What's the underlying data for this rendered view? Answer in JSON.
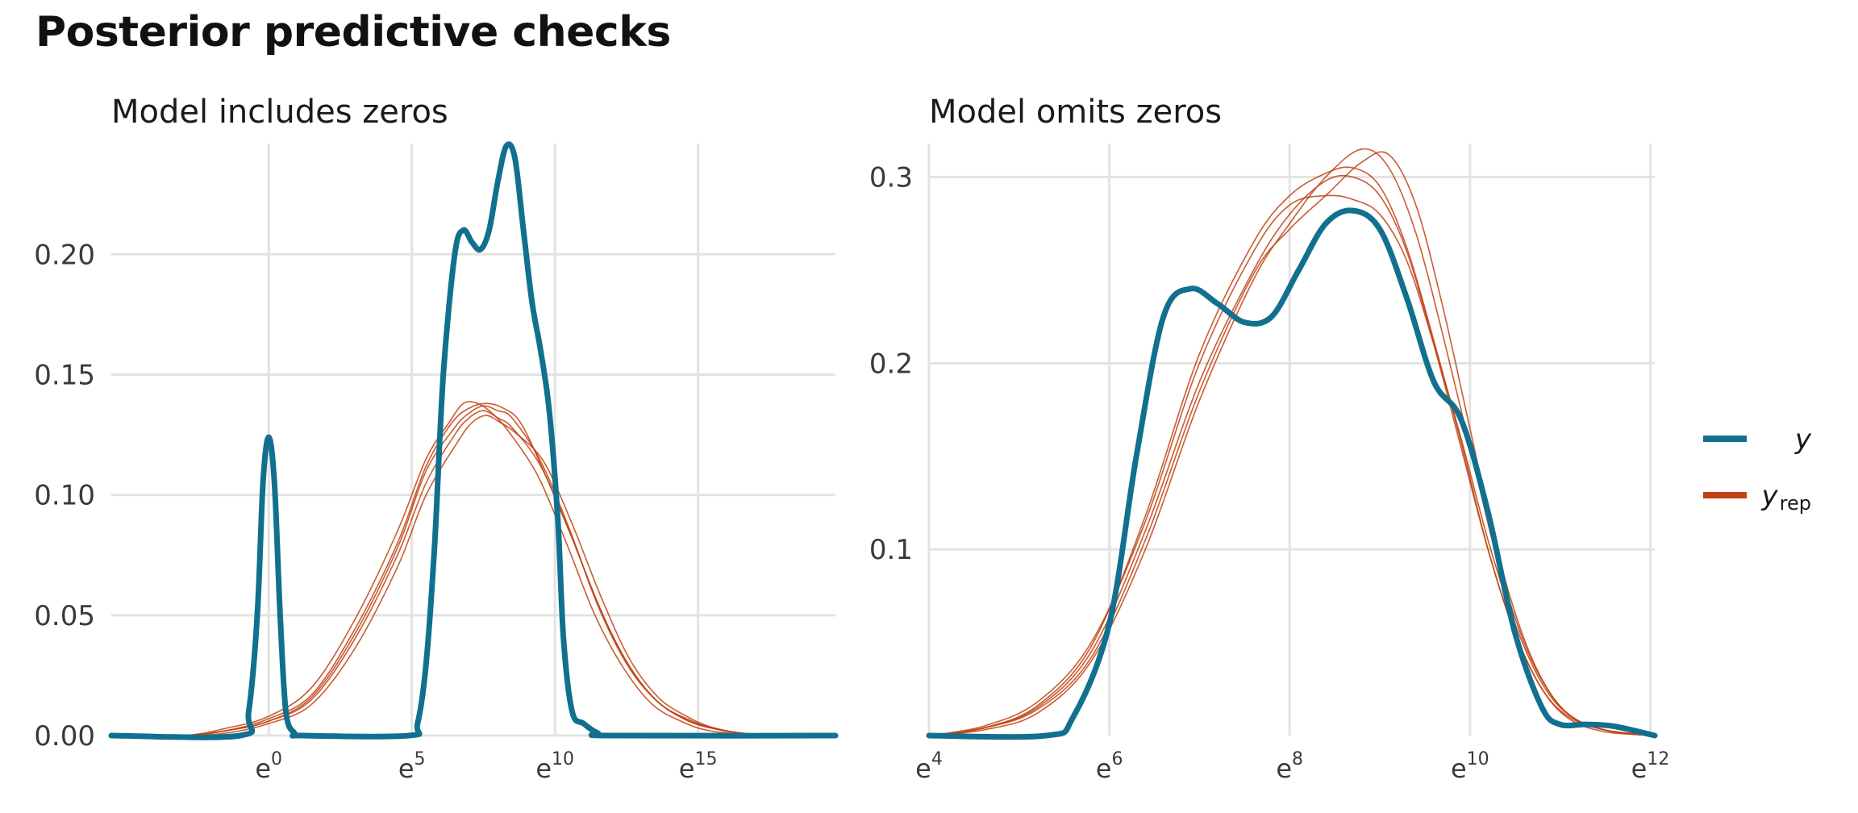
{
  "title": "Posterior predictive checks",
  "legend": {
    "items": [
      {
        "key": "y",
        "label": "y",
        "subscript": "",
        "color": "#12708f"
      },
      {
        "key": "yrep",
        "label": "y",
        "subscript": "rep",
        "color": "#c0400f"
      }
    ]
  },
  "colors": {
    "y": "#12708f",
    "yrep": "#c0400f",
    "grid": "#e3e3e3"
  },
  "chart_data": [
    {
      "type": "line",
      "title": "Model includes zeros",
      "xlabel": "",
      "ylabel": "",
      "x_scale": "log",
      "xlim": [
        -5.5,
        19.8
      ],
      "ylim": [
        0,
        0.246
      ],
      "x_ticks": [
        {
          "base": "e",
          "exp": "0",
          "x": 0
        },
        {
          "base": "e",
          "exp": "5",
          "x": 5
        },
        {
          "base": "e",
          "exp": "10",
          "x": 10
        },
        {
          "base": "e",
          "exp": "15",
          "x": 15
        }
      ],
      "y_ticks": [
        {
          "label": "0.00",
          "y": 0
        },
        {
          "label": "0.05",
          "y": 0.05
        },
        {
          "label": "0.10",
          "y": 0.1
        },
        {
          "label": "0.15",
          "y": 0.15
        },
        {
          "label": "0.20",
          "y": 0.2
        }
      ],
      "grid": true,
      "series": [
        {
          "name": "y",
          "key": "y",
          "x": [
            -5.5,
            -1.0,
            -0.7,
            -0.4,
            -0.2,
            0.0,
            0.2,
            0.4,
            0.6,
            0.9,
            1.2,
            4.9,
            5.2,
            5.5,
            5.8,
            6.1,
            6.5,
            6.8,
            7.1,
            7.4,
            7.7,
            8.0,
            8.3,
            8.6,
            8.9,
            9.2,
            9.5,
            9.8,
            10.1,
            10.3,
            10.6,
            11.0,
            11.5,
            12.0,
            19.8
          ],
          "y": [
            0,
            0,
            0.01,
            0.05,
            0.105,
            0.124,
            0.105,
            0.05,
            0.01,
            0.001,
            0,
            0,
            0.005,
            0.03,
            0.08,
            0.15,
            0.2,
            0.21,
            0.205,
            0.202,
            0.21,
            0.23,
            0.245,
            0.24,
            0.21,
            0.18,
            0.16,
            0.135,
            0.09,
            0.04,
            0.01,
            0.005,
            0.001,
            0,
            0
          ]
        },
        {
          "name": "",
          "key": "yrep",
          "x": [
            -5.5,
            -3.0,
            -1.5,
            0,
            1.5,
            3,
            4.5,
            5.5,
            6.5,
            7.0,
            7.5,
            8.0,
            8.5,
            9.5,
            10.5,
            11.5,
            12.5,
            13.5,
            14.5,
            15.5,
            17,
            19.8
          ],
          "y": [
            0,
            0,
            0.002,
            0.006,
            0.015,
            0.04,
            0.075,
            0.105,
            0.125,
            0.132,
            0.135,
            0.132,
            0.128,
            0.112,
            0.085,
            0.055,
            0.03,
            0.015,
            0.007,
            0.003,
            0.0005,
            0
          ]
        },
        {
          "name": "",
          "key": "yrep",
          "x": [
            -5.5,
            -3.0,
            -1.5,
            0,
            1.5,
            3,
            4.5,
            5.5,
            6.3,
            6.8,
            7.3,
            7.8,
            8.4,
            9.4,
            10.4,
            11.4,
            12.4,
            13.4,
            14.4,
            15.4,
            17,
            19.8
          ],
          "y": [
            0,
            0,
            0.003,
            0.008,
            0.02,
            0.048,
            0.085,
            0.115,
            0.13,
            0.138,
            0.138,
            0.134,
            0.126,
            0.108,
            0.08,
            0.05,
            0.028,
            0.013,
            0.006,
            0.002,
            0.0004,
            0
          ]
        },
        {
          "name": "",
          "key": "yrep",
          "x": [
            -5.5,
            -3.0,
            -1.5,
            0,
            1.5,
            3,
            4.5,
            5.5,
            6.6,
            7.1,
            7.6,
            8.1,
            8.6,
            9.6,
            10.6,
            11.6,
            12.6,
            13.6,
            14.6,
            15.6,
            17,
            19.8
          ],
          "y": [
            0,
            0,
            0.001,
            0.005,
            0.013,
            0.036,
            0.07,
            0.1,
            0.122,
            0.13,
            0.133,
            0.13,
            0.126,
            0.114,
            0.088,
            0.058,
            0.032,
            0.016,
            0.008,
            0.003,
            0.0006,
            0
          ]
        },
        {
          "name": "",
          "key": "yrep",
          "x": [
            -5.5,
            -3.0,
            -1.5,
            0,
            1.5,
            3,
            4.5,
            5.5,
            6.4,
            7.0,
            7.6,
            8.2,
            8.8,
            9.6,
            10.6,
            11.6,
            12.6,
            13.6,
            14.6,
            15.6,
            17,
            19.8
          ],
          "y": [
            0,
            0,
            0.002,
            0.007,
            0.017,
            0.044,
            0.08,
            0.112,
            0.13,
            0.136,
            0.138,
            0.136,
            0.13,
            0.11,
            0.082,
            0.052,
            0.029,
            0.014,
            0.007,
            0.003,
            0.0005,
            0
          ]
        },
        {
          "name": "",
          "key": "yrep",
          "x": [
            -5.5,
            -3.0,
            -1.5,
            0,
            1.5,
            3,
            4.5,
            5.5,
            6.5,
            7.0,
            7.5,
            8.0,
            8.5,
            9.5,
            10.5,
            11.5,
            12.5,
            13.5,
            14.5,
            15.5,
            17,
            19.8
          ],
          "y": [
            0,
            0,
            0.002,
            0.006,
            0.016,
            0.042,
            0.078,
            0.11,
            0.128,
            0.134,
            0.137,
            0.135,
            0.132,
            0.114,
            0.086,
            0.054,
            0.03,
            0.015,
            0.007,
            0.003,
            0.0005,
            0
          ]
        }
      ]
    },
    {
      "type": "line",
      "title": "Model omits zeros",
      "xlabel": "",
      "ylabel": "",
      "x_scale": "log",
      "xlim": [
        4,
        12.05
      ],
      "ylim": [
        0,
        0.318
      ],
      "x_ticks": [
        {
          "base": "e",
          "exp": "4",
          "x": 4
        },
        {
          "base": "e",
          "exp": "6",
          "x": 6
        },
        {
          "base": "e",
          "exp": "8",
          "x": 8
        },
        {
          "base": "e",
          "exp": "10",
          "x": 10
        },
        {
          "base": "e",
          "exp": "12",
          "x": 12
        }
      ],
      "y_ticks": [
        {
          "label": "0.1",
          "y": 0.1
        },
        {
          "label": "0.2",
          "y": 0.2
        },
        {
          "label": "0.3",
          "y": 0.3
        }
      ],
      "grid": true,
      "series": [
        {
          "name": "y",
          "key": "y",
          "x": [
            4,
            5.3,
            5.6,
            6.0,
            6.3,
            6.6,
            6.9,
            7.2,
            7.5,
            7.8,
            8.1,
            8.4,
            8.7,
            9.0,
            9.3,
            9.6,
            9.9,
            10.2,
            10.5,
            10.8,
            11.0,
            11.3,
            11.6,
            12.05
          ],
          "y": [
            0,
            0,
            0.01,
            0.06,
            0.15,
            0.225,
            0.24,
            0.232,
            0.222,
            0.225,
            0.25,
            0.275,
            0.282,
            0.272,
            0.235,
            0.19,
            0.17,
            0.12,
            0.055,
            0.015,
            0.006,
            0.006,
            0.005,
            0
          ]
        },
        {
          "name": "",
          "key": "yrep",
          "x": [
            4,
            4.6,
            5.2,
            5.8,
            6.4,
            7.0,
            7.6,
            8.0,
            8.4,
            8.7,
            9.0,
            9.3,
            9.6,
            9.9,
            10.2,
            10.5,
            10.8,
            11.1,
            11.5,
            12.05
          ],
          "y": [
            0,
            0.004,
            0.015,
            0.045,
            0.11,
            0.19,
            0.25,
            0.28,
            0.298,
            0.3,
            0.29,
            0.26,
            0.21,
            0.155,
            0.1,
            0.055,
            0.025,
            0.01,
            0.003,
            0
          ]
        },
        {
          "name": "",
          "key": "yrep",
          "x": [
            4,
            4.6,
            5.2,
            5.8,
            6.4,
            7.0,
            7.6,
            8.0,
            8.4,
            8.8,
            9.1,
            9.4,
            9.7,
            10.0,
            10.3,
            10.6,
            10.9,
            11.2,
            11.6,
            12.05
          ],
          "y": [
            0,
            0.003,
            0.012,
            0.04,
            0.1,
            0.18,
            0.245,
            0.275,
            0.3,
            0.315,
            0.305,
            0.27,
            0.215,
            0.155,
            0.095,
            0.05,
            0.022,
            0.008,
            0.002,
            0
          ]
        },
        {
          "name": "",
          "key": "yrep",
          "x": [
            4,
            4.6,
            5.2,
            5.8,
            6.4,
            7.0,
            7.6,
            8.0,
            8.4,
            8.7,
            9.0,
            9.3,
            9.6,
            9.9,
            10.2,
            10.5,
            10.8,
            11.1,
            11.5,
            12.05
          ],
          "y": [
            0,
            0.005,
            0.018,
            0.05,
            0.115,
            0.2,
            0.26,
            0.285,
            0.29,
            0.288,
            0.28,
            0.255,
            0.21,
            0.16,
            0.105,
            0.06,
            0.028,
            0.011,
            0.003,
            0
          ]
        },
        {
          "name": "",
          "key": "yrep",
          "x": [
            4,
            4.6,
            5.2,
            5.8,
            6.4,
            7.0,
            7.6,
            8.0,
            8.4,
            8.8,
            9.1,
            9.4,
            9.7,
            10.0,
            10.3,
            10.6,
            10.9,
            11.2,
            11.6,
            12.05
          ],
          "y": [
            0,
            0.004,
            0.014,
            0.042,
            0.105,
            0.185,
            0.248,
            0.272,
            0.29,
            0.308,
            0.312,
            0.285,
            0.23,
            0.165,
            0.1,
            0.052,
            0.022,
            0.008,
            0.002,
            0
          ]
        },
        {
          "name": "",
          "key": "yrep",
          "x": [
            4,
            4.6,
            5.2,
            5.8,
            6.4,
            7.0,
            7.6,
            8.0,
            8.4,
            8.7,
            9.0,
            9.3,
            9.6,
            9.9,
            10.2,
            10.5,
            10.8,
            11.1,
            11.5,
            12.05
          ],
          "y": [
            0,
            0.004,
            0.016,
            0.048,
            0.118,
            0.205,
            0.265,
            0.29,
            0.302,
            0.305,
            0.295,
            0.262,
            0.212,
            0.158,
            0.1,
            0.055,
            0.025,
            0.009,
            0.002,
            0
          ]
        }
      ]
    }
  ]
}
